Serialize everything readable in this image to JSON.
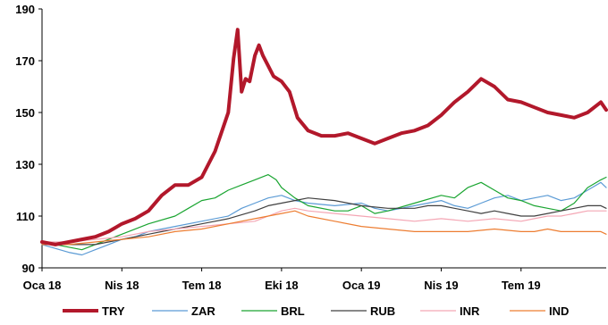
{
  "chart_data": {
    "type": "line",
    "title": "",
    "xlabel": "",
    "ylabel": "",
    "ylim": [
      90,
      190
    ],
    "y_ticks": [
      90,
      110,
      130,
      150,
      170,
      190
    ],
    "x_ticks": [
      "Oca 18",
      "Nis 18",
      "Tem 18",
      "Eki 18",
      "Oca 19",
      "Nis 19",
      "Tem 19"
    ],
    "x_tick_months": [
      0,
      3,
      6,
      9,
      12,
      15,
      18
    ],
    "xlim_months": [
      0,
      21.2
    ],
    "grid": false,
    "legend_position": "bottom",
    "series": [
      {
        "name": "TRY",
        "color": "#b2182b",
        "width": 4,
        "x": [
          0,
          0.5,
          1,
          1.5,
          2,
          2.5,
          3,
          3.5,
          4,
          4.5,
          5,
          5.5,
          6,
          6.5,
          7,
          7.2,
          7.35,
          7.5,
          7.65,
          7.8,
          8,
          8.15,
          8.3,
          8.5,
          8.7,
          9,
          9.3,
          9.6,
          10,
          10.5,
          11,
          11.5,
          12,
          12.5,
          13,
          13.5,
          14,
          14.5,
          15,
          15.5,
          16,
          16.5,
          17,
          17.5,
          18,
          18.5,
          19,
          19.5,
          20,
          20.5,
          21,
          21.2
        ],
        "y": [
          100,
          99,
          100,
          101,
          102,
          104,
          107,
          109,
          112,
          118,
          122,
          122,
          125,
          135,
          150,
          171,
          182,
          158,
          163,
          162,
          172,
          176,
          172,
          168,
          164,
          162,
          158,
          148,
          143,
          141,
          141,
          142,
          140,
          138,
          140,
          142,
          143,
          145,
          149,
          154,
          158,
          163,
          160,
          155,
          154,
          152,
          150,
          149,
          148,
          150,
          154,
          151
        ]
      },
      {
        "name": "ZAR",
        "color": "#5b9bd5",
        "width": 1.2,
        "x": [
          0,
          1,
          1.5,
          2,
          2.5,
          3,
          3.5,
          4,
          5,
          6,
          7,
          7.5,
          8,
          8.5,
          9,
          9.5,
          10,
          11,
          12,
          12.5,
          13,
          14,
          15,
          15.5,
          16,
          16.5,
          17,
          17.5,
          18,
          18.5,
          19,
          19.5,
          20,
          20.5,
          21,
          21.2
        ],
        "y": [
          99,
          96,
          95,
          97,
          99,
          101,
          102,
          104,
          106,
          108,
          110,
          113,
          115,
          117,
          118,
          116,
          115,
          114,
          115,
          113,
          112,
          114,
          116,
          114,
          113,
          115,
          117,
          118,
          116,
          117,
          118,
          116,
          117,
          120,
          123,
          121
        ]
      },
      {
        "name": "BRL",
        "color": "#1aa531",
        "width": 1.2,
        "x": [
          0,
          1,
          1.5,
          2,
          3,
          4,
          5,
          5.5,
          6,
          6.5,
          7,
          7.5,
          8,
          8.5,
          8.8,
          9,
          9.5,
          10,
          11,
          11.5,
          12,
          12.5,
          13,
          14,
          15,
          15.5,
          16,
          16.5,
          17,
          17.5,
          18,
          18.5,
          19,
          19.5,
          20,
          20.5,
          21,
          21.2
        ],
        "y": [
          100,
          98,
          97,
          99,
          103,
          107,
          110,
          113,
          116,
          117,
          120,
          122,
          124,
          126,
          124,
          121,
          117,
          114,
          112,
          112,
          114,
          111,
          112,
          115,
          118,
          117,
          121,
          123,
          120,
          117,
          116,
          114,
          113,
          112,
          115,
          121,
          124,
          125
        ]
      },
      {
        "name": "RUB",
        "color": "#404040",
        "width": 1.2,
        "x": [
          0,
          1,
          2,
          3,
          4,
          5,
          6,
          7,
          8,
          8.5,
          9,
          9.5,
          10,
          11,
          12,
          13,
          14,
          14.5,
          15,
          15.5,
          16,
          16.5,
          17,
          17.5,
          18,
          18.5,
          19,
          19.5,
          20,
          20.5,
          21,
          21.2
        ],
        "y": [
          100,
          99,
          99,
          101,
          103,
          105,
          107,
          109,
          112,
          114,
          115,
          116,
          117,
          116,
          114,
          113,
          113,
          114,
          114,
          113,
          112,
          111,
          112,
          111,
          110,
          110,
          111,
          112,
          113,
          114,
          114,
          113
        ]
      },
      {
        "name": "INR",
        "color": "#f4a6b4",
        "width": 1.2,
        "x": [
          0,
          1,
          2,
          3,
          4,
          5,
          6,
          7,
          8,
          8.5,
          9,
          9.5,
          10,
          11,
          12,
          13,
          14,
          15,
          16,
          17,
          18,
          18.5,
          19,
          19.5,
          20,
          20.5,
          21,
          21.2
        ],
        "y": [
          100,
          100,
          101,
          102,
          104,
          105,
          106,
          107,
          108,
          110,
          112,
          113,
          112,
          111,
          110,
          109,
          108,
          109,
          108,
          109,
          108,
          109,
          110,
          110,
          111,
          112,
          112,
          112
        ]
      },
      {
        "name": "IND",
        "color": "#ed7d31",
        "width": 1.2,
        "x": [
          0,
          1,
          2,
          3,
          4,
          5,
          6,
          7,
          8,
          8.5,
          9,
          9.5,
          10,
          11,
          12,
          13,
          14,
          15,
          16,
          17,
          18,
          18.5,
          19,
          19.5,
          20,
          20.5,
          21,
          21.2
        ],
        "y": [
          99,
          99,
          100,
          101,
          102,
          104,
          105,
          107,
          109,
          110,
          111,
          112,
          110,
          108,
          106,
          105,
          104,
          104,
          104,
          105,
          104,
          104,
          105,
          104,
          104,
          104,
          104,
          103
        ]
      }
    ]
  }
}
